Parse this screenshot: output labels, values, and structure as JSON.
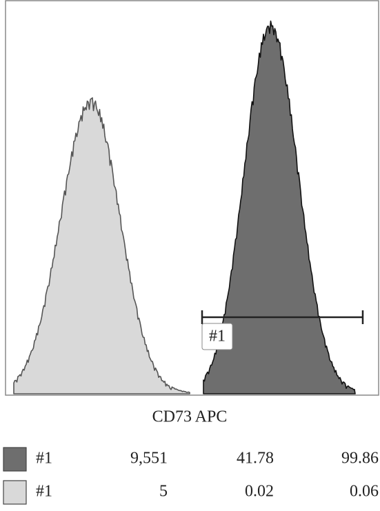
{
  "chart_data": {
    "type": "histogram-overlay",
    "x_label": "CD73 APC",
    "gate_label": "#1",
    "series": [
      {
        "color": "#6e6e6e",
        "row": [
          "#1",
          "9,551",
          "41.78",
          "99.86"
        ]
      },
      {
        "color": "#d9d9d9",
        "row": [
          "#1",
          "5",
          "0.02",
          "0.06"
        ]
      }
    ]
  }
}
